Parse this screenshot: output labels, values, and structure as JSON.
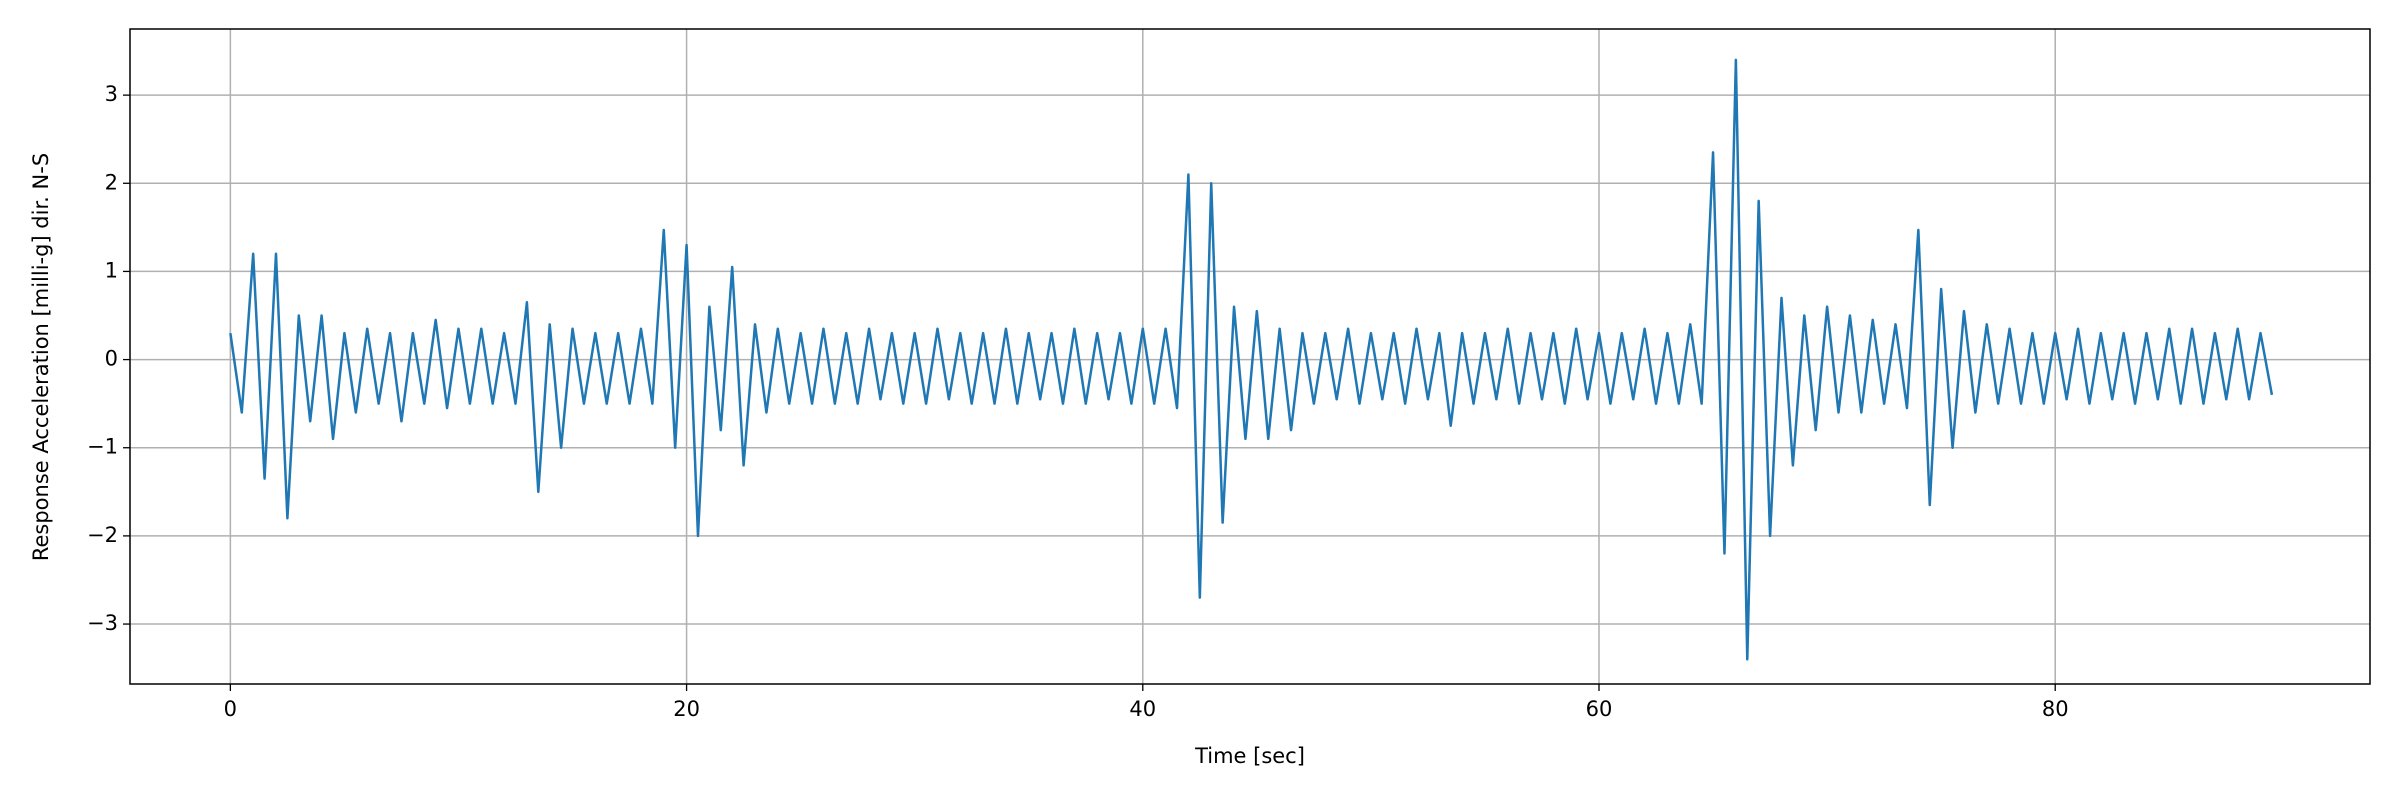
{
  "chart_data": {
    "type": "line",
    "xlabel": "Time [sec]",
    "ylabel": "Response Acceleration [milli-g] dir. N-S",
    "color": "#1f77b4",
    "grid": true,
    "xlim": [
      -4.4,
      93.8
    ],
    "ylim": [
      -3.68,
      3.75
    ],
    "xticks": [
      0,
      20,
      40,
      60,
      80
    ],
    "yticks": [
      {
        "value": -3,
        "label": "−3"
      },
      {
        "value": -2,
        "label": "−2"
      },
      {
        "value": -1,
        "label": "−1"
      },
      0,
      1,
      2,
      3
    ],
    "x": [
      0,
      0.5,
      1,
      1.5,
      2,
      2.5,
      3,
      3.5,
      4,
      4.5,
      5,
      5.5,
      6,
      6.5,
      7,
      7.5,
      8,
      8.5,
      9,
      9.5,
      10,
      10.5,
      11,
      11.5,
      12,
      12.5,
      13,
      13.5,
      14,
      14.5,
      15,
      15.5,
      16,
      16.5,
      17,
      17.5,
      18,
      18.5,
      19,
      19.5,
      20,
      20.5,
      21,
      21.5,
      22,
      22.5,
      23,
      23.5,
      24,
      24.5,
      25,
      25.5,
      26,
      26.5,
      27,
      27.5,
      28,
      28.5,
      29,
      29.5,
      30,
      30.5,
      31,
      31.5,
      32,
      32.5,
      33,
      33.5,
      34,
      34.5,
      35,
      35.5,
      36,
      36.5,
      37,
      37.5,
      38,
      38.5,
      39,
      39.5,
      40,
      40.5,
      41,
      41.5,
      42,
      42.5,
      43,
      43.5,
      44,
      44.5,
      45,
      45.5,
      46,
      46.5,
      47,
      47.5,
      48,
      48.5,
      49,
      49.5,
      50,
      50.5,
      51,
      51.5,
      52,
      52.5,
      53,
      53.5,
      54,
      54.5,
      55,
      55.5,
      56,
      56.5,
      57,
      57.5,
      58,
      58.5,
      59,
      59.5,
      60,
      60.5,
      61,
      61.5,
      62,
      62.5,
      63,
      63.5,
      64,
      64.5,
      65,
      65.5,
      66,
      66.5,
      67,
      67.5,
      68,
      68.5,
      69,
      69.5,
      70,
      70.5,
      71,
      71.5,
      72,
      72.5,
      73,
      73.5,
      74,
      74.5,
      75,
      75.5,
      76,
      76.5,
      77,
      77.5,
      78,
      78.5,
      79,
      79.5,
      80,
      80.5,
      81,
      81.5,
      82,
      82.5,
      83,
      83.5,
      84,
      84.5,
      85,
      85.5,
      86,
      86.5,
      87,
      87.5,
      88,
      88.5,
      89,
      89.5
    ],
    "values": [
      0.3,
      -0.6,
      1.2,
      -1.35,
      1.2,
      -1.8,
      0.5,
      -0.7,
      0.5,
      -0.9,
      0.3,
      -0.6,
      0.35,
      -0.5,
      0.3,
      -0.7,
      0.3,
      -0.5,
      0.45,
      -0.55,
      0.35,
      -0.5,
      0.35,
      -0.5,
      0.3,
      -0.5,
      0.65,
      -1.5,
      0.4,
      -1.0,
      0.35,
      -0.5,
      0.3,
      -0.5,
      0.3,
      -0.5,
      0.35,
      -0.5,
      1.47,
      -1.0,
      1.3,
      -2.0,
      0.6,
      -0.8,
      1.05,
      -1.2,
      0.4,
      -0.6,
      0.35,
      -0.5,
      0.3,
      -0.5,
      0.35,
      -0.5,
      0.3,
      -0.5,
      0.35,
      -0.45,
      0.3,
      -0.5,
      0.3,
      -0.5,
      0.35,
      -0.45,
      0.3,
      -0.5,
      0.3,
      -0.5,
      0.35,
      -0.5,
      0.3,
      -0.45,
      0.3,
      -0.5,
      0.35,
      -0.5,
      0.3,
      -0.45,
      0.3,
      -0.5,
      0.35,
      -0.5,
      0.35,
      -0.55,
      2.1,
      -2.7,
      2.0,
      -1.85,
      0.6,
      -0.9,
      0.55,
      -0.9,
      0.35,
      -0.8,
      0.3,
      -0.5,
      0.3,
      -0.45,
      0.35,
      -0.5,
      0.3,
      -0.45,
      0.3,
      -0.5,
      0.35,
      -0.45,
      0.3,
      -0.75,
      0.3,
      -0.5,
      0.3,
      -0.45,
      0.35,
      -0.5,
      0.3,
      -0.45,
      0.3,
      -0.5,
      0.35,
      -0.45,
      0.3,
      -0.5,
      0.3,
      -0.45,
      0.35,
      -0.5,
      0.3,
      -0.5,
      0.4,
      -0.5,
      2.35,
      -2.2,
      3.4,
      -3.4,
      1.8,
      -2.0,
      0.7,
      -1.2,
      0.5,
      -0.8,
      0.6,
      -0.6,
      0.5,
      -0.6,
      0.45,
      -0.5,
      0.4,
      -0.55,
      1.47,
      -1.65,
      0.8,
      -1.0,
      0.55,
      -0.6,
      0.4,
      -0.5,
      0.35,
      -0.5,
      0.3,
      -0.5,
      0.3,
      -0.45,
      0.35,
      -0.5,
      0.3,
      -0.45,
      0.3,
      -0.5,
      0.3,
      -0.45,
      0.35,
      -0.5,
      0.35,
      -0.5,
      0.3,
      -0.45,
      0.35,
      -0.45,
      0.3,
      -0.4
    ]
  }
}
